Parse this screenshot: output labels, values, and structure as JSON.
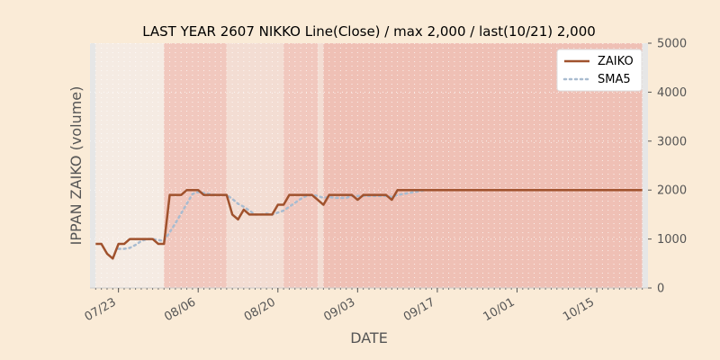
{
  "chart_data": {
    "type": "line",
    "title": "LAST YEAR 2607 NIKKO Line(Close) / max 2,000 / last(10/21) 2,000",
    "xlabel": "DATE",
    "ylabel": "IPPAN ZAIKO (volume)",
    "y_axis_side": "right",
    "ylim": [
      0,
      5000
    ],
    "yticks": [
      0,
      1000,
      2000,
      3000,
      4000,
      5000
    ],
    "ytick_labels": [
      "0",
      "1000",
      "2000",
      "3000",
      "4000",
      "5000"
    ],
    "xlim": [
      "07/18",
      "10/24"
    ],
    "xticks": [
      "07/23",
      "08/06",
      "08/20",
      "09/03",
      "09/17",
      "10/01",
      "10/15"
    ],
    "grid": true,
    "legend_position": "top-right",
    "colors": {
      "background": "#faebd7",
      "plot_background": "#f5ebe3",
      "zaiko": "#a0522d",
      "sma5": "#a9bcd0",
      "band_light": "#f3ddd3",
      "band_medium": "#f1c8be",
      "band_dark": "#efc0b5",
      "edge": "#e6e6e6"
    },
    "background_bands": [
      {
        "from": "07/18",
        "to": "07/19",
        "shade": "edge"
      },
      {
        "from": "07/19",
        "to": "07/31",
        "shade": "plain"
      },
      {
        "from": "07/31",
        "to": "08/11",
        "shade": "band_medium"
      },
      {
        "from": "08/11",
        "to": "08/21",
        "shade": "band_light"
      },
      {
        "from": "08/21",
        "to": "08/27",
        "shade": "band_medium"
      },
      {
        "from": "08/27",
        "to": "08/28",
        "shade": "band_light"
      },
      {
        "from": "08/28",
        "to": "10/23",
        "shade": "band_dark"
      },
      {
        "from": "10/23",
        "to": "10/24",
        "shade": "edge"
      }
    ],
    "x": [
      "07/19",
      "07/20",
      "07/21",
      "07/22",
      "07/23",
      "07/24",
      "07/25",
      "07/26",
      "07/27",
      "07/28",
      "07/29",
      "07/30",
      "07/31",
      "08/01",
      "08/02",
      "08/03",
      "08/04",
      "08/05",
      "08/06",
      "08/07",
      "08/08",
      "08/09",
      "08/10",
      "08/11",
      "08/12",
      "08/13",
      "08/14",
      "08/15",
      "08/16",
      "08/17",
      "08/18",
      "08/19",
      "08/20",
      "08/21",
      "08/22",
      "08/23",
      "08/24",
      "08/25",
      "08/26",
      "08/27",
      "08/28",
      "08/29",
      "08/30",
      "08/31",
      "09/01",
      "09/02",
      "09/03",
      "09/04",
      "09/05",
      "09/06",
      "09/07",
      "09/08",
      "09/09",
      "09/10",
      "09/11",
      "09/12",
      "09/13",
      "09/14",
      "09/15",
      "09/16",
      "09/17",
      "09/18",
      "09/19",
      "09/20",
      "09/21",
      "09/22",
      "09/23",
      "09/24",
      "09/25",
      "09/26",
      "09/27",
      "09/28",
      "09/29",
      "09/30",
      "10/01",
      "10/02",
      "10/03",
      "10/04",
      "10/05",
      "10/06",
      "10/07",
      "10/08",
      "10/09",
      "10/10",
      "10/11",
      "10/12",
      "10/13",
      "10/14",
      "10/15",
      "10/16",
      "10/17",
      "10/18",
      "10/19",
      "10/20",
      "10/21",
      "10/22",
      "10/23"
    ],
    "series": [
      {
        "name": "ZAIKO",
        "style": "solid",
        "values": [
          900,
          900,
          700,
          600,
          900,
          900,
          1000,
          1000,
          1000,
          1000,
          1000,
          900,
          900,
          1900,
          1900,
          1900,
          2000,
          2000,
          2000,
          1900,
          1900,
          1900,
          1900,
          1900,
          1500,
          1400,
          1600,
          1500,
          1500,
          1500,
          1500,
          1500,
          1700,
          1700,
          1900,
          1900,
          1900,
          1900,
          1900,
          1800,
          1700,
          1900,
          1900,
          1900,
          1900,
          1900,
          1800,
          1900,
          1900,
          1900,
          1900,
          1900,
          1800,
          2000,
          2000,
          2000,
          2000,
          2000,
          2000,
          2000,
          2000,
          2000,
          2000,
          2000,
          2000,
          2000,
          2000,
          2000,
          2000,
          2000,
          2000,
          2000,
          2000,
          2000,
          2000,
          2000,
          2000,
          2000,
          2000,
          2000,
          2000,
          2000,
          2000,
          2000,
          2000,
          2000,
          2000,
          2000,
          2000,
          2000,
          2000,
          2000,
          2000,
          2000,
          2000,
          2000,
          2000
        ]
      },
      {
        "name": "SMA5",
        "style": "dotted",
        "values": [
          null,
          null,
          null,
          null,
          800,
          800,
          820,
          880,
          960,
          1000,
          1000,
          980,
          960,
          1140,
          1320,
          1520,
          1720,
          1920,
          1960,
          1940,
          1920,
          1900,
          1900,
          1900,
          1820,
          1720,
          1660,
          1580,
          1500,
          1500,
          1520,
          1500,
          1540,
          1580,
          1660,
          1740,
          1820,
          1880,
          1900,
          1880,
          1840,
          1860,
          1840,
          1840,
          1840,
          1880,
          1880,
          1880,
          1880,
          1880,
          1880,
          1880,
          1860,
          1900,
          1920,
          1940,
          1960,
          1980,
          2000,
          2000,
          2000,
          2000,
          2000,
          2000,
          2000,
          2000,
          2000,
          2000,
          2000,
          2000,
          2000,
          2000,
          2000,
          2000,
          2000,
          2000,
          2000,
          2000,
          2000,
          2000,
          2000,
          2000,
          2000,
          2000,
          2000,
          2000,
          2000,
          2000,
          2000,
          2000,
          2000,
          2000,
          2000,
          2000,
          2000,
          2000,
          2000
        ]
      }
    ]
  }
}
